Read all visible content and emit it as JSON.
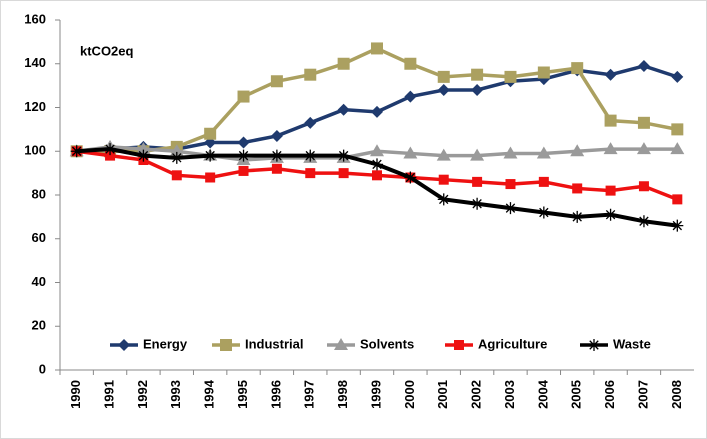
{
  "chart_data": {
    "type": "line",
    "annotation": "ktCO2eq",
    "categories": [
      "1990",
      "1991",
      "1992",
      "1993",
      "1994",
      "1995",
      "1996",
      "1997",
      "1998",
      "1999",
      "2000",
      "2001",
      "2002",
      "2003",
      "2004",
      "2005",
      "2006",
      "2007",
      "2008"
    ],
    "series": [
      {
        "name": "Energy",
        "color": "#1f3a6e",
        "marker": "diamond",
        "values": [
          100,
          101,
          102,
          101,
          104,
          104,
          107,
          113,
          119,
          118,
          125,
          128,
          128,
          132,
          133,
          137,
          135,
          139,
          134
        ]
      },
      {
        "name": "Industrial",
        "color": "#aba060",
        "marker": "square",
        "values": [
          100,
          100,
          100,
          102,
          108,
          125,
          132,
          135,
          140,
          147,
          140,
          134,
          135,
          134,
          136,
          138,
          114,
          113,
          110
        ]
      },
      {
        "name": "Solvents",
        "color": "#9a9a9a",
        "marker": "triangle",
        "values": [
          100,
          102,
          101,
          100,
          98,
          96,
          97,
          97,
          97,
          100,
          99,
          98,
          98,
          99,
          99,
          100,
          101,
          101,
          101
        ]
      },
      {
        "name": "Agriculture",
        "color": "#ee1111",
        "marker": "smallsquare",
        "values": [
          100,
          98,
          96,
          89,
          88,
          91,
          92,
          90,
          90,
          89,
          88,
          87,
          86,
          85,
          86,
          83,
          82,
          84,
          78
        ]
      },
      {
        "name": "Waste",
        "color": "#000000",
        "marker": "star",
        "values": [
          100,
          101,
          98,
          97,
          98,
          98,
          98,
          98,
          98,
          94,
          88,
          78,
          76,
          74,
          72,
          70,
          71,
          68,
          66
        ]
      }
    ],
    "ylim": [
      0,
      160
    ],
    "yticks": [
      0,
      20,
      40,
      60,
      80,
      100,
      120,
      140,
      160
    ],
    "grid": false,
    "legend": "bottom"
  }
}
